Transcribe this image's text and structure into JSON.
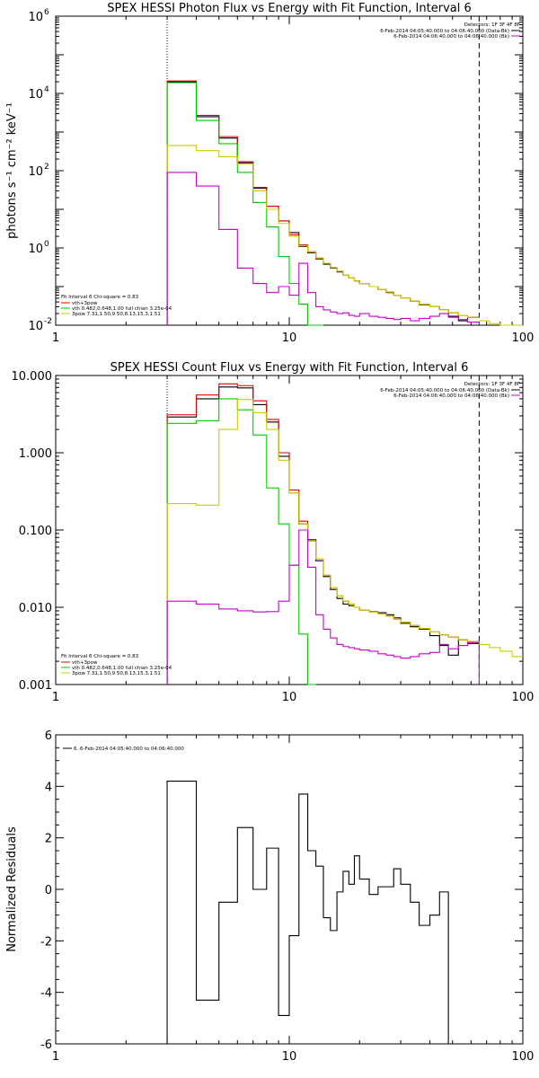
{
  "chart_data": [
    {
      "type": "line",
      "title": "SPEX HESSI Photon Flux vs Energy with Fit Function, Interval 6",
      "ylabel": "photons s⁻¹ cm⁻² keV⁻¹",
      "xlabel": "",
      "xscale": "log",
      "yscale": "log",
      "xlim": [
        1,
        100
      ],
      "ylim": [
        0.01,
        1000000
      ],
      "xticks": [
        {
          "v": 1,
          "label": "1"
        },
        {
          "v": 10,
          "label": "10"
        },
        {
          "v": 100,
          "label": "100"
        }
      ],
      "yticks": [
        {
          "v": 0.01,
          "label": "10",
          "exp": "-2"
        },
        {
          "v": 1,
          "label": "10",
          "exp": "0"
        },
        {
          "v": 100,
          "label": "10",
          "exp": "2"
        },
        {
          "v": 10000,
          "label": "10",
          "exp": "4"
        },
        {
          "v": 1000000,
          "label": "10",
          "exp": "6"
        }
      ],
      "vlines": [
        {
          "x": 3,
          "style": "dotted"
        },
        {
          "x": 65,
          "style": "dashed"
        }
      ],
      "legend_right": {
        "header": "Detectors: 1F 3F 4F 8F",
        "items": [
          {
            "text": "6-Feb-2014 04:05:40.000 to 04:06:40.000 (Data-Bk)",
            "color": "#000000"
          },
          {
            "text": "6-Feb-2014 04:06:40.000 to 04:06:40.000 (Bk)",
            "color": "#cc00cc"
          }
        ]
      },
      "legend_left": {
        "header": "Fit Interval  6   Chi-square = 0.83",
        "items": [
          {
            "text": "vth+3pow",
            "color": "#e00000"
          },
          {
            "text": "vth 0.482,0.648,1.00  full chian 3.25e-04",
            "color": "#00cc00"
          },
          {
            "text": "3pow 7.31,1.50,9.50,8.13,15.3,1.51",
            "color": "#cccc00"
          }
        ]
      },
      "edges": [
        3,
        4,
        5,
        6,
        7,
        8,
        9,
        10,
        11,
        12,
        13,
        14,
        15,
        16,
        17,
        18,
        19,
        20,
        22,
        24,
        26,
        28,
        30,
        33,
        36,
        40,
        44,
        48,
        53,
        58,
        65
      ],
      "series": [
        {
          "color": "#000000",
          "values": [
            20000,
            2500,
            700,
            160,
            35,
            12,
            5,
            2.5,
            1.1,
            0.75,
            0.52,
            0.38,
            0.3,
            0.24,
            0.2,
            0.17,
            0.14,
            0.12,
            0.1,
            0.085,
            0.07,
            0.06,
            0.05,
            0.042,
            0.034,
            0.03,
            0.025,
            0.017,
            0.013,
            0.016
          ]
        },
        {
          "color": "#e00000",
          "values": [
            21000,
            2700,
            760,
            170,
            37,
            12,
            5,
            2.2,
            1.2,
            0.8,
            0.55,
            0.4,
            0.31,
            0.25,
            0.2,
            0.17,
            0.14,
            0.12,
            0.1,
            0.085,
            0.072,
            0.06,
            0.05,
            0.042,
            0.035,
            0.03,
            0.025,
            0.021,
            0.018,
            0.016
          ]
        },
        {
          "color": "#00cc00",
          "values": [
            19000,
            2000,
            500,
            90,
            15,
            3.5,
            0.6,
            0.12,
            0.035,
            0.01,
            0.0001
          ]
        },
        {
          "color": "#cccc00",
          "values": [
            450,
            330,
            230,
            150,
            30,
            10,
            4.3,
            2.0,
            1.15,
            0.8,
            0.55,
            0.4,
            0.31,
            0.25,
            0.2,
            0.17,
            0.14,
            0.12,
            0.1,
            0.085,
            0.072,
            0.06,
            0.05,
            0.042,
            0.035,
            0.03,
            0.025,
            0.021,
            0.018,
            0.016
          ]
        },
        {
          "color": "#cc00cc",
          "values": [
            90,
            40,
            3.0,
            0.3,
            0.12,
            0.07,
            0.1,
            0.06,
            0.4,
            0.07,
            0.03,
            0.025,
            0.022,
            0.02,
            0.021,
            0.018,
            0.017,
            0.02,
            0.017,
            0.016,
            0.015,
            0.014,
            0.015,
            0.013,
            0.015,
            0.017,
            0.02,
            0.016,
            0.014,
            0.012
          ]
        }
      ],
      "tail_series": [
        {
          "color": "#cccc00",
          "edges": [
            65,
            72,
            80,
            90,
            100
          ],
          "values": [
            0.013,
            0.011,
            0.01,
            0.009
          ]
        }
      ]
    },
    {
      "type": "line",
      "title": "SPEX HESSI Count Flux vs Energy with Fit Function, Interval 6",
      "ylabel": "",
      "xlabel": "",
      "xscale": "log",
      "yscale": "log",
      "xlim": [
        1,
        100
      ],
      "ylim": [
        0.001,
        10
      ],
      "xticks": [
        {
          "v": 1,
          "label": "1"
        },
        {
          "v": 10,
          "label": "10"
        },
        {
          "v": 100,
          "label": "100"
        }
      ],
      "yticks": [
        {
          "v": 0.001,
          "label": "0.001"
        },
        {
          "v": 0.01,
          "label": "0.010"
        },
        {
          "v": 0.1,
          "label": "0.100"
        },
        {
          "v": 1,
          "label": "1.000"
        },
        {
          "v": 10,
          "label": "10.000"
        }
      ],
      "vlines": [
        {
          "x": 3,
          "style": "dotted"
        },
        {
          "x": 65,
          "style": "dashed"
        }
      ],
      "legend_right": {
        "header": "Detectors: 1F 3F 4F 8F",
        "items": [
          {
            "text": "6-Feb-2014 04:05:40.000 to 04:06:40.000 (Data-Bk)",
            "color": "#000000"
          },
          {
            "text": "6-Feb-2014 04:06:40.000 to 04:06:40.000 (Bk)",
            "color": "#cc00cc"
          }
        ]
      },
      "legend_left": {
        "header": "Fit Interval  6   Chi-square = 0.83",
        "items": [
          {
            "text": "vth+3pow",
            "color": "#e00000"
          },
          {
            "text": "vth 0.482,0.648,1.00  full chian 3.25e-04",
            "color": "#00cc00"
          },
          {
            "text": "3pow 7.31,1.50,9.50,8.13,15.3,1.51",
            "color": "#cccc00"
          }
        ]
      },
      "edges": [
        3,
        4,
        5,
        6,
        7,
        8,
        9,
        10,
        11,
        12,
        13,
        14,
        15,
        16,
        17,
        18,
        19,
        20,
        22,
        24,
        26,
        28,
        30,
        33,
        36,
        40,
        44,
        48,
        53,
        58,
        65
      ],
      "series": [
        {
          "color": "#000000",
          "values": [
            2.9,
            5.0,
            7.1,
            6.9,
            4.2,
            2.5,
            0.9,
            0.3,
            0.12,
            0.075,
            0.04,
            0.025,
            0.017,
            0.013,
            0.011,
            0.0105,
            0.01,
            0.0092,
            0.0088,
            0.0085,
            0.008,
            0.0073,
            0.0062,
            0.0056,
            0.0052,
            0.0043,
            0.0032,
            0.0024,
            0.0038,
            0.0034
          ]
        },
        {
          "color": "#e00000",
          "values": [
            3.1,
            5.6,
            7.8,
            7.4,
            4.7,
            2.7,
            1.0,
            0.33,
            0.13,
            0.072,
            0.042,
            0.026,
            0.018,
            0.014,
            0.012,
            0.011,
            0.01,
            0.0092,
            0.0087,
            0.0082,
            0.0077,
            0.007,
            0.0064,
            0.0058,
            0.0053,
            0.0048,
            0.0044,
            0.0041,
            0.0038,
            0.0036
          ]
        },
        {
          "color": "#00cc00",
          "values": [
            2.4,
            2.6,
            5.0,
            3.6,
            1.7,
            0.35,
            0.12,
            0.035,
            0.0045,
            1e-05
          ]
        },
        {
          "color": "#cccc00",
          "values": [
            0.22,
            0.21,
            2.0,
            4.9,
            3.3,
            2.0,
            0.8,
            0.3,
            0.12,
            0.072,
            0.042,
            0.026,
            0.018,
            0.014,
            0.012,
            0.011,
            0.01,
            0.0092,
            0.0087,
            0.0082,
            0.0077,
            0.007,
            0.0064,
            0.0058,
            0.0053,
            0.0048,
            0.0044,
            0.0041,
            0.0038,
            0.0036
          ]
        },
        {
          "color": "#cc00cc",
          "values": [
            0.012,
            0.011,
            0.0095,
            0.009,
            0.0087,
            0.0088,
            0.012,
            0.035,
            0.1,
            0.033,
            0.008,
            0.0052,
            0.004,
            0.0033,
            0.0031,
            0.003,
            0.0029,
            0.0028,
            0.0027,
            0.0025,
            0.0024,
            0.0023,
            0.0022,
            0.0023,
            0.0025,
            0.0026,
            0.0033,
            0.0029,
            0.0032,
            0.0035
          ]
        }
      ],
      "tail_series": [
        {
          "color": "#cccc00",
          "edges": [
            65,
            72,
            80,
            90,
            100
          ],
          "values": [
            0.0033,
            0.003,
            0.0027,
            0.0023
          ]
        }
      ]
    },
    {
      "type": "line",
      "title": "",
      "ylabel": "Normalized Residuals",
      "xlabel": "",
      "xscale": "log",
      "yscale": "linear",
      "xlim": [
        1,
        100
      ],
      "ylim": [
        -6,
        6
      ],
      "xticks": [
        {
          "v": 1,
          "label": "1"
        },
        {
          "v": 10,
          "label": "10"
        },
        {
          "v": 100,
          "label": "100"
        }
      ],
      "yticks": [
        {
          "v": -6,
          "label": "-6"
        },
        {
          "v": -4,
          "label": "-4"
        },
        {
          "v": -2,
          "label": "-2"
        },
        {
          "v": 0,
          "label": "0"
        },
        {
          "v": 2,
          "label": "2"
        },
        {
          "v": 4,
          "label": "4"
        },
        {
          "v": 6,
          "label": "6"
        }
      ],
      "legend": {
        "items": [
          {
            "text": "6.  6-Feb-2014 04:05:40.000 to 04:06:40.000",
            "color": "#000000"
          }
        ]
      },
      "edges": [
        3,
        4,
        5,
        6,
        7,
        8,
        9,
        10,
        11,
        12,
        13,
        14,
        15,
        16,
        17,
        18,
        19,
        20,
        22,
        24,
        26,
        28,
        30,
        33,
        36,
        40,
        44,
        48,
        53,
        58,
        65
      ],
      "series": [
        {
          "color": "#000000",
          "values": [
            4.2,
            -4.3,
            -0.5,
            2.4,
            0.0,
            1.6,
            -4.9,
            -1.8,
            3.7,
            1.5,
            0.9,
            -1.1,
            -1.6,
            -0.1,
            0.7,
            0.2,
            1.3,
            0.4,
            -0.2,
            0.1,
            0.1,
            0.8,
            0.2,
            -0.5,
            -1.4,
            -1.0,
            -0.1
          ]
        }
      ],
      "baseline_ends": true
    }
  ]
}
